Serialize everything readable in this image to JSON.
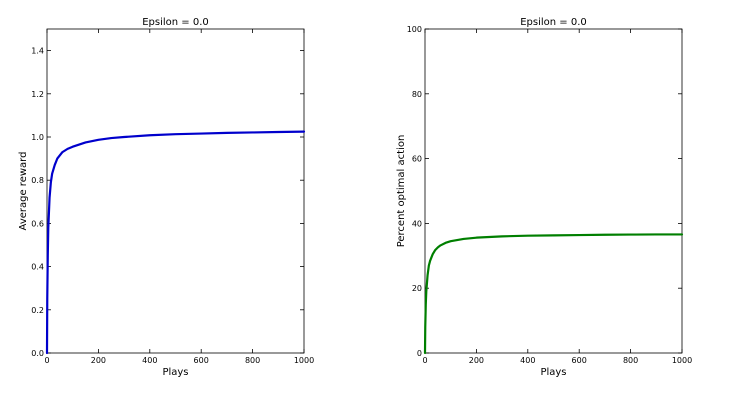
{
  "chart_data": [
    {
      "type": "line",
      "title": "Epsilon = 0.0",
      "xlabel": "Plays",
      "ylabel": "Average reward",
      "xlim": [
        0,
        1000
      ],
      "ylim": [
        0,
        1.5
      ],
      "xticks": [
        0,
        200,
        400,
        600,
        800,
        1000
      ],
      "yticks": [
        0.0,
        0.2,
        0.4,
        0.6,
        0.8,
        1.0,
        1.2,
        1.4
      ],
      "ytick_labels": [
        "0.0",
        "0.2",
        "0.4",
        "0.6",
        "0.8",
        "1.0",
        "1.2",
        "1.4"
      ],
      "grid": false,
      "series": [
        {
          "color": "#0000cc",
          "x": [
            0,
            1,
            3,
            5,
            10,
            15,
            20,
            30,
            40,
            50,
            60,
            80,
            100,
            150,
            200,
            250,
            300,
            400,
            500,
            600,
            700,
            800,
            900,
            1000
          ],
          "y": [
            0.0,
            0.25,
            0.45,
            0.58,
            0.72,
            0.79,
            0.83,
            0.87,
            0.9,
            0.915,
            0.93,
            0.945,
            0.955,
            0.975,
            0.987,
            0.995,
            1.0,
            1.008,
            1.013,
            1.016,
            1.019,
            1.021,
            1.023,
            1.025
          ]
        }
      ]
    },
    {
      "type": "line",
      "title": "Epsilon = 0.0",
      "xlabel": "Plays",
      "ylabel": "Percent optimal action",
      "xlim": [
        0,
        1000
      ],
      "ylim": [
        0,
        100
      ],
      "xticks": [
        0,
        200,
        400,
        600,
        800,
        1000
      ],
      "yticks": [
        0,
        20,
        40,
        60,
        80,
        100
      ],
      "ytick_labels": [
        "0",
        "20",
        "40",
        "60",
        "80",
        "100"
      ],
      "grid": false,
      "series": [
        {
          "color": "#007f00",
          "x": [
            0,
            1,
            3,
            5,
            10,
            15,
            20,
            30,
            40,
            50,
            60,
            80,
            100,
            150,
            200,
            300,
            400,
            500,
            600,
            700,
            800,
            900,
            1000
          ],
          "y": [
            0,
            8,
            15,
            19,
            24,
            27,
            28.5,
            30.5,
            31.8,
            32.6,
            33.2,
            34,
            34.5,
            35.2,
            35.6,
            36,
            36.2,
            36.3,
            36.4,
            36.5,
            36.55,
            36.6,
            36.6
          ]
        }
      ]
    }
  ]
}
